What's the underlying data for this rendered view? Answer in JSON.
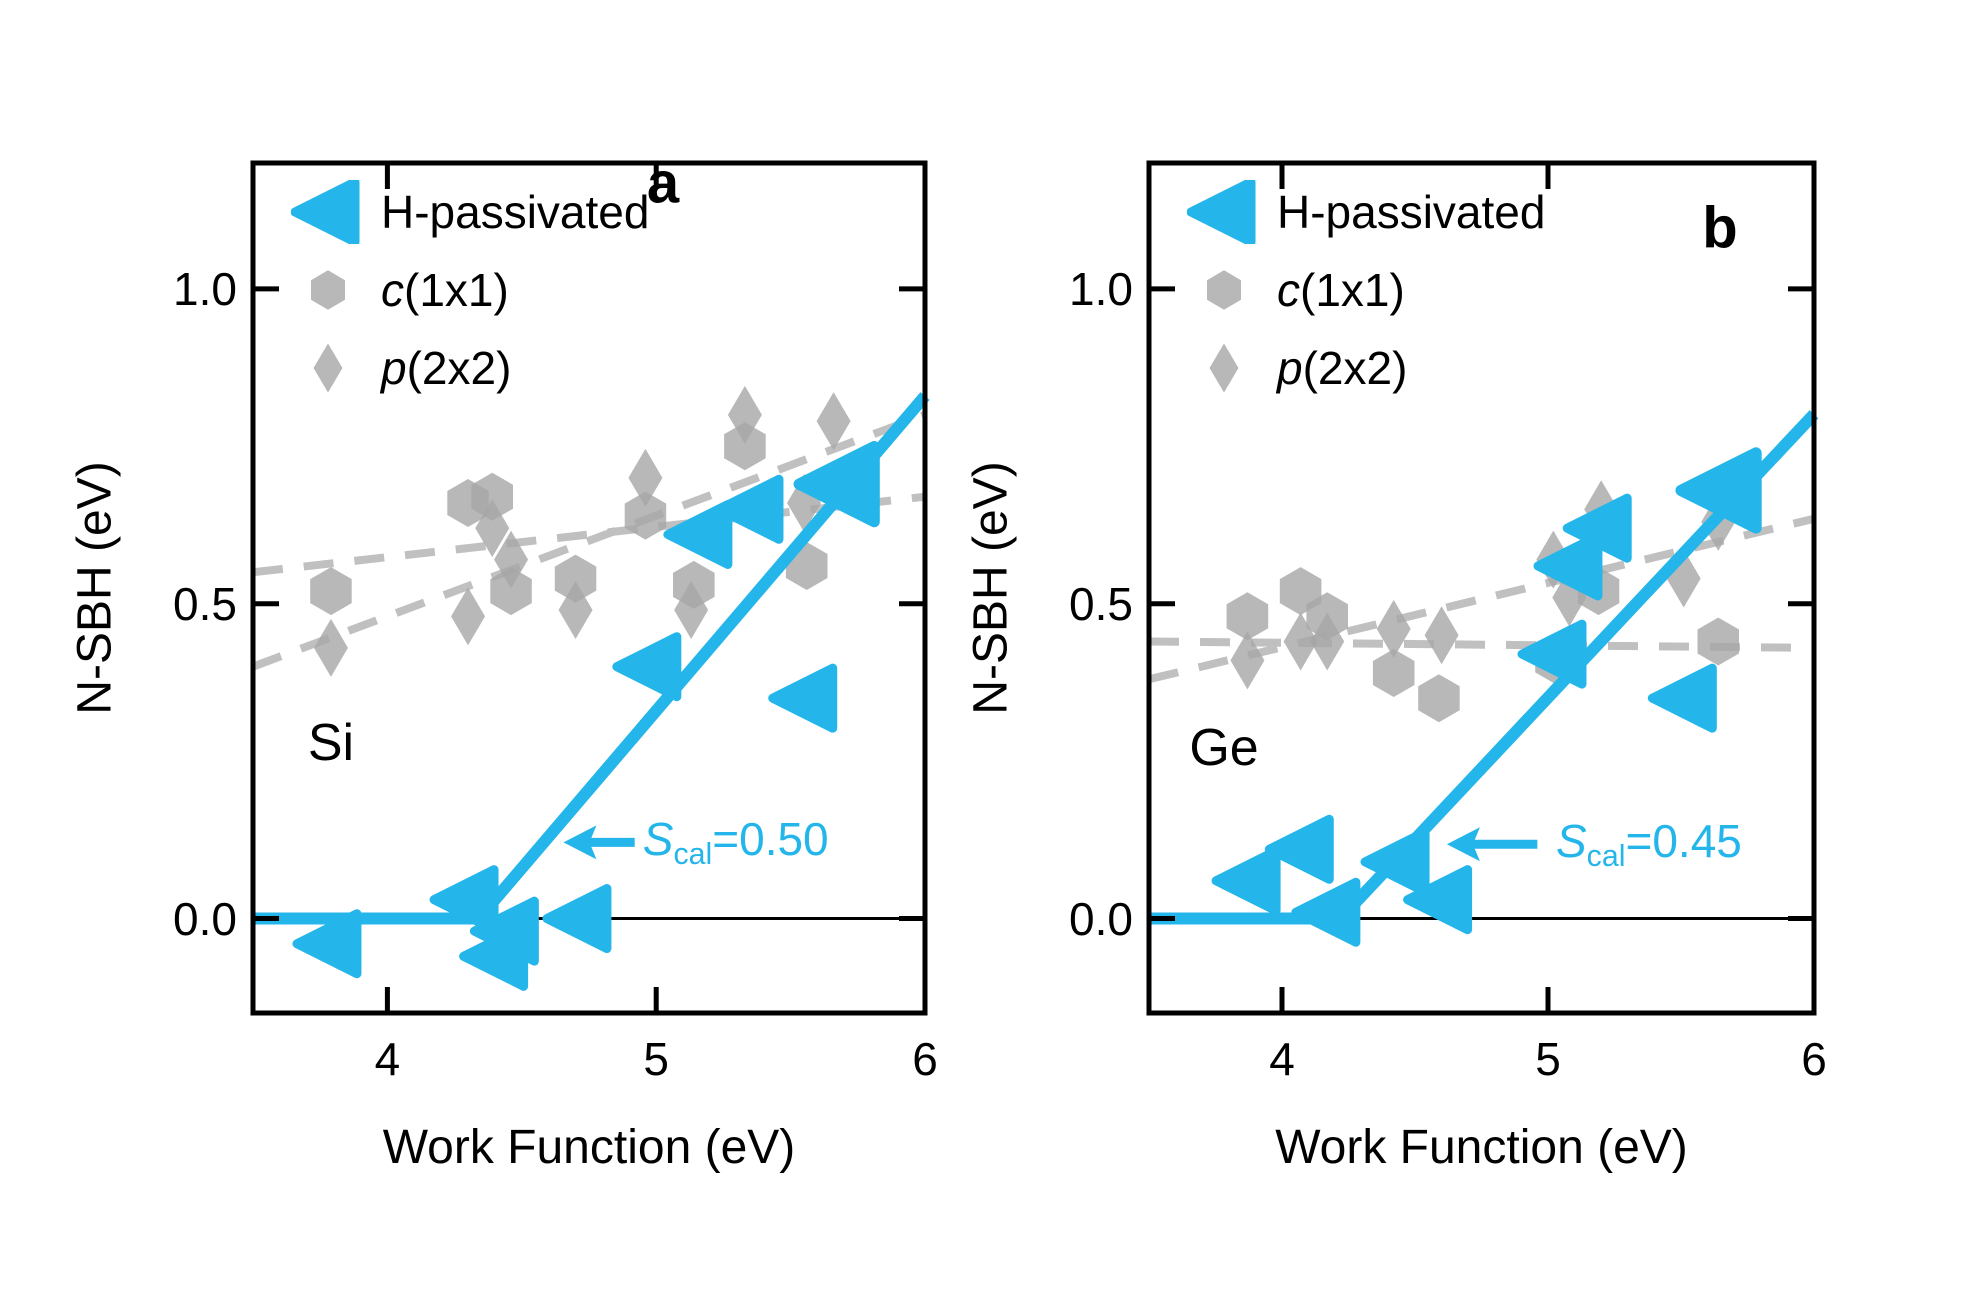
{
  "figure": {
    "background_color": "#ffffff",
    "accent_color": "#24b6ea",
    "gray_marker_color": "#a6a6a6",
    "gray_marker_opacity": 0.8,
    "dashed_line_color": "#c0c0c0",
    "axis_color": "#000000"
  },
  "chart_data": [
    {
      "type": "scatter",
      "panel_label": "a",
      "material_label": "Si",
      "xlabel": "Work Function (eV)",
      "ylabel": "N-SBH (eV)",
      "xlim": [
        3.5,
        6.0
      ],
      "ylim": [
        -0.15,
        1.2
      ],
      "x_ticks": [
        {
          "v": 4,
          "label": "4"
        },
        {
          "v": 5,
          "label": "5"
        },
        {
          "v": 6,
          "label": "6"
        }
      ],
      "y_ticks": [
        {
          "v": 0.0,
          "label": "0.0"
        },
        {
          "v": 0.5,
          "label": "0.5"
        },
        {
          "v": 1.0,
          "label": "1.0"
        }
      ],
      "grid": false,
      "legend_position": "upper-left-inside",
      "legend": [
        {
          "label": "H-passivated",
          "marker": "triangle-left",
          "italic_part": "",
          "plain_part": "H-passivated"
        },
        {
          "label": "c(1x1)",
          "marker": "hexagon",
          "italic_part": "c",
          "plain_part": "(1x1)"
        },
        {
          "label": "p(2x2)",
          "marker": "diamond",
          "italic_part": "p",
          "plain_part": "(2x2)"
        }
      ],
      "series": [
        {
          "name": "H-passivated",
          "marker": "triangle-left",
          "color": "accent",
          "points": [
            [
              3.79,
              -0.04
            ],
            [
              4.3,
              0.03
            ],
            [
              4.41,
              -0.06
            ],
            [
              4.45,
              -0.02
            ],
            [
              4.72,
              0.0
            ],
            [
              4.98,
              0.4
            ],
            [
              5.17,
              0.61
            ],
            [
              5.36,
              0.65
            ],
            [
              5.56,
              0.35
            ],
            [
              5.69,
              0.69,
              1.25
            ]
          ]
        },
        {
          "name": "c(1x1)",
          "marker": "hexagon",
          "color": "gray",
          "points": [
            [
              3.79,
              0.52
            ],
            [
              4.3,
              0.66
            ],
            [
              4.39,
              0.67
            ],
            [
              4.46,
              0.52
            ],
            [
              4.7,
              0.54
            ],
            [
              4.96,
              0.64
            ],
            [
              5.14,
              0.53
            ],
            [
              5.33,
              0.75
            ],
            [
              5.56,
              0.56
            ]
          ]
        },
        {
          "name": "p(2x2)",
          "marker": "diamond",
          "color": "gray",
          "points": [
            [
              3.79,
              0.43
            ],
            [
              4.3,
              0.48
            ],
            [
              4.39,
              0.62
            ],
            [
              4.46,
              0.57
            ],
            [
              4.7,
              0.49
            ],
            [
              4.96,
              0.7
            ],
            [
              5.13,
              0.49
            ],
            [
              5.33,
              0.8
            ],
            [
              5.55,
              0.66
            ],
            [
              5.66,
              0.79
            ]
          ]
        }
      ],
      "fit_lines": [
        {
          "group": "c(1x1)",
          "style": "dashed",
          "x": [
            3.5,
            6.0
          ],
          "y": [
            0.55,
            0.67
          ]
        },
        {
          "group": "p(2x2)",
          "style": "dashed",
          "x": [
            3.5,
            6.0
          ],
          "y": [
            0.4,
            0.8
          ]
        }
      ],
      "model_line": {
        "flat_start_wf": 3.5,
        "kink_wf": 4.34,
        "slope": 0.5,
        "end_wf": 6.0
      },
      "zero_line_y": 0.0,
      "annotation": {
        "symbol": "S",
        "subscript": "cal",
        "value_text": "=0.50",
        "full_text": "Scal=0.50",
        "text_wf": 4.95,
        "sbh": 0.121,
        "arrow_tail_wf": 4.92,
        "arrow_tip_wf": 4.655
      }
    },
    {
      "type": "scatter",
      "panel_label": "b",
      "material_label": "Ge",
      "xlabel": "Work Function (eV)",
      "ylabel": "N-SBH (eV)",
      "xlim": [
        3.5,
        6.0
      ],
      "ylim": [
        -0.15,
        1.2
      ],
      "x_ticks": [
        {
          "v": 4,
          "label": "4"
        },
        {
          "v": 5,
          "label": "5"
        },
        {
          "v": 6,
          "label": "6"
        }
      ],
      "y_ticks": [
        {
          "v": 0.0,
          "label": "0.0"
        },
        {
          "v": 0.5,
          "label": "0.5"
        },
        {
          "v": 1.0,
          "label": "1.0"
        }
      ],
      "grid": false,
      "legend_position": "upper-left-inside",
      "legend": [
        {
          "label": "H-passivated",
          "marker": "triangle-left",
          "italic_part": "",
          "plain_part": "H-passivated"
        },
        {
          "label": "c(1x1)",
          "marker": "hexagon",
          "italic_part": "c",
          "plain_part": "(1x1)"
        },
        {
          "label": "p(2x2)",
          "marker": "diamond",
          "italic_part": "p",
          "plain_part": "(2x2)"
        }
      ],
      "series": [
        {
          "name": "H-passivated",
          "marker": "triangle-left",
          "color": "accent",
          "points": [
            [
              3.88,
              0.06
            ],
            [
              4.08,
              0.11
            ],
            [
              4.18,
              0.01
            ],
            [
              4.44,
              0.09
            ],
            [
              4.6,
              0.03
            ],
            [
              5.03,
              0.42
            ],
            [
              5.09,
              0.56
            ],
            [
              5.2,
              0.62
            ],
            [
              5.52,
              0.35
            ],
            [
              5.66,
              0.68,
              1.25
            ]
          ]
        },
        {
          "name": "c(1x1)",
          "marker": "hexagon",
          "color": "gray",
          "points": [
            [
              3.87,
              0.48
            ],
            [
              4.07,
              0.52
            ],
            [
              4.17,
              0.48
            ],
            [
              4.42,
              0.39
            ],
            [
              4.59,
              0.35
            ],
            [
              5.03,
              0.41
            ],
            [
              5.19,
              0.52
            ],
            [
              5.64,
              0.44
            ]
          ]
        },
        {
          "name": "p(2x2)",
          "marker": "diamond",
          "color": "gray",
          "points": [
            [
              3.87,
              0.41
            ],
            [
              4.07,
              0.44
            ],
            [
              4.17,
              0.44
            ],
            [
              4.42,
              0.46
            ],
            [
              4.6,
              0.45
            ],
            [
              5.02,
              0.57
            ],
            [
              5.08,
              0.51
            ],
            [
              5.2,
              0.65
            ],
            [
              5.51,
              0.54
            ],
            [
              5.64,
              0.63
            ]
          ]
        }
      ],
      "fit_lines": [
        {
          "group": "c(1x1)",
          "style": "dashed",
          "x": [
            3.5,
            6.0
          ],
          "y": [
            0.44,
            0.43
          ]
        },
        {
          "group": "p(2x2)",
          "style": "dashed",
          "x": [
            3.5,
            6.0
          ],
          "y": [
            0.38,
            0.635
          ]
        }
      ],
      "model_line": {
        "flat_start_wf": 3.5,
        "kink_wf": 4.22,
        "slope": 0.45,
        "end_wf": 6.0
      },
      "zero_line_y": 0.0,
      "annotation": {
        "symbol": "S",
        "subscript": "cal",
        "value_text": "=0.45",
        "full_text": "Scal=0.45",
        "text_wf": 5.03,
        "sbh": 0.118,
        "arrow_tail_wf": 4.96,
        "arrow_tip_wf": 4.62
      }
    }
  ]
}
